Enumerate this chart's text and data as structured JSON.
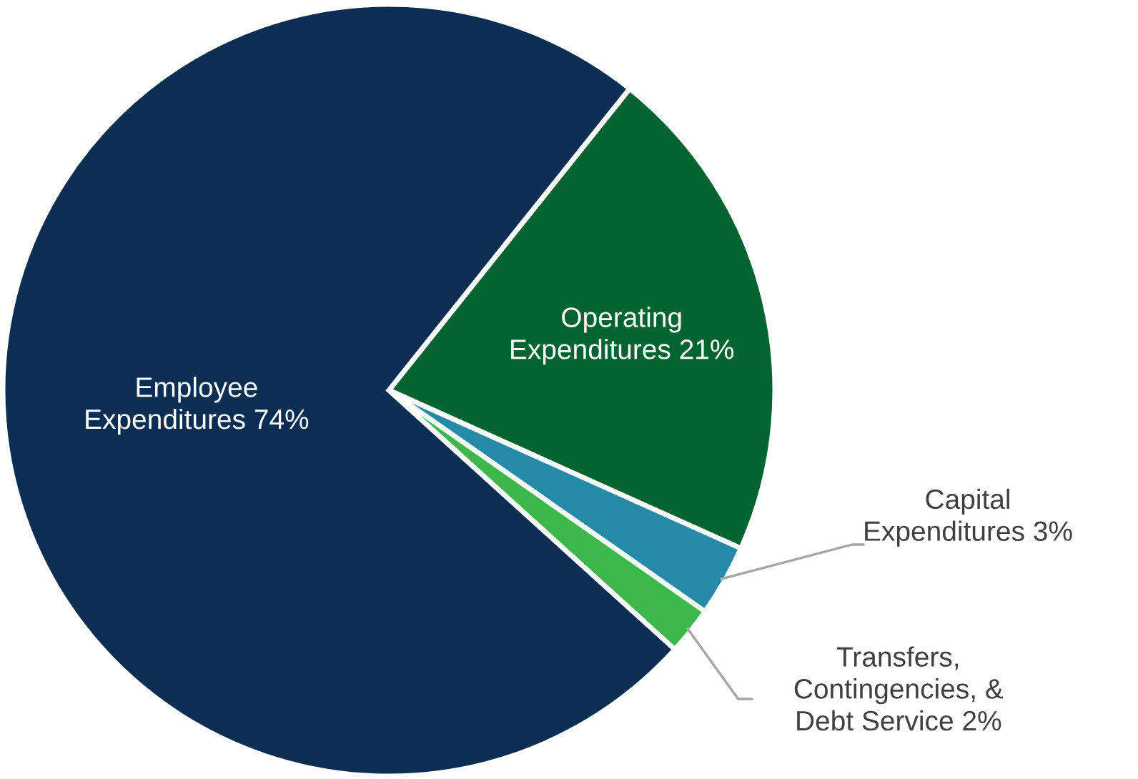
{
  "chart_data": {
    "type": "pie",
    "categories": [
      "Operating\nExpenditures",
      "Capital\nExpenditures",
      "Transfers,\nContingencies, &\nDebt Service",
      "Employee\nExpenditures"
    ],
    "values": [
      21,
      3,
      2,
      74
    ],
    "value_labels": [
      "21%",
      "3%",
      "2%",
      "74%"
    ],
    "colors": [
      "#036331",
      "#2589a8",
      "#3cb84a",
      "#0b2e52"
    ]
  }
}
